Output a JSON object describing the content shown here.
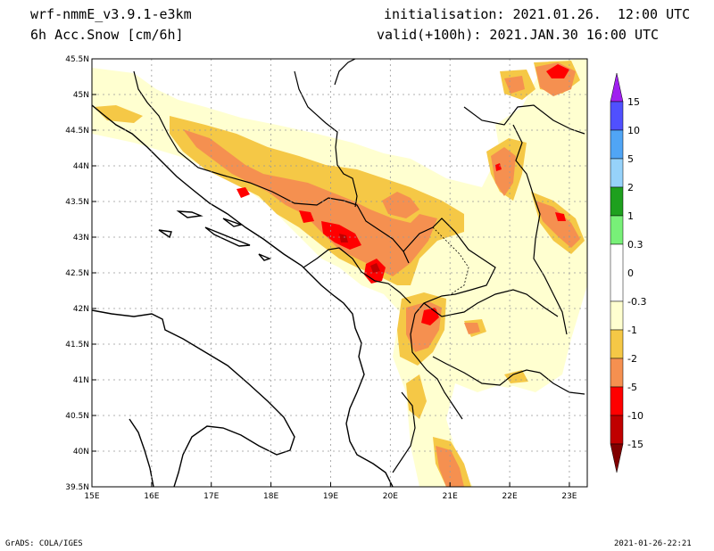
{
  "header": {
    "model": "wrf-nmmE_v3.9.1-e3km",
    "field": "6h Acc.Snow [cm/6h]",
    "init": "initialisation: 2021.01.26.  12:00 UTC",
    "valid": "valid(+100h): 2021.JAN.30 16:00 UTC"
  },
  "footer": {
    "left": "GrADS: COLA/IGES",
    "right": "2021-01-26-22:21"
  },
  "map": {
    "lon_range": [
      15,
      23.3
    ],
    "lat_range": [
      39.5,
      45.5
    ],
    "lon_ticks": [
      "15E",
      "16E",
      "17E",
      "18E",
      "19E",
      "20E",
      "21E",
      "22E",
      "23E"
    ],
    "lat_ticks": [
      "39.5N",
      "40N",
      "40.5N",
      "41N",
      "41.5N",
      "42N",
      "42.5N",
      "43N",
      "43.5N",
      "44N",
      "44.5N",
      "45N",
      "45.5N"
    ],
    "grid": true
  },
  "colorbar": {
    "labels": [
      "15",
      "10",
      "5",
      "2",
      "1",
      "0.3",
      "0",
      "-0.3",
      "-1",
      "-2",
      "-5",
      "-10",
      "-15"
    ],
    "colors": {
      "top_arrow": "#a020f0",
      "c15": "#5050ff",
      "c10": "#50a5f5",
      "c5": "#96d2fa",
      "c2": "#1ea01e",
      "c1": "#78f078",
      "neutral": "#ffffff",
      "n03": "#ffffd0",
      "n1": "#f5c846",
      "n2": "#f59050",
      "n5": "#ff0000",
      "n10": "#c00000",
      "bottom_arrow": "#800000"
    }
  },
  "snow_colors": {
    "light": "#ffffd0",
    "yellow": "#f5c846",
    "orange": "#f59050",
    "red": "#ff0000",
    "darkred": "#c00000"
  }
}
